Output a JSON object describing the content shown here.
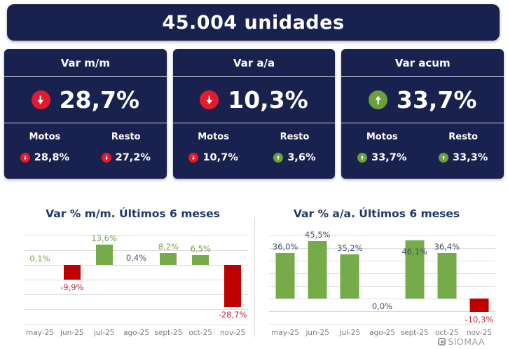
{
  "header": {
    "title": "45.004 unidades"
  },
  "cards": [
    {
      "title": "Var m/m",
      "value": "28,7%",
      "direction": "down",
      "motos": {
        "label": "Motos",
        "value": "28,8%",
        "direction": "down"
      },
      "resto": {
        "label": "Resto",
        "value": "27,2%",
        "direction": "down"
      }
    },
    {
      "title": "Var a/a",
      "value": "10,3%",
      "direction": "down",
      "motos": {
        "label": "Motos",
        "value": "10,7%",
        "direction": "down"
      },
      "resto": {
        "label": "Resto",
        "value": "3,6%",
        "direction": "up"
      }
    },
    {
      "title": "Var acum",
      "value": "33,7%",
      "direction": "up",
      "motos": {
        "label": "Motos",
        "value": "33,7%",
        "direction": "up"
      },
      "resto": {
        "label": "Resto",
        "value": "33,3%",
        "direction": "up"
      }
    }
  ],
  "colors": {
    "navy_bg": "#19214f",
    "bar_positive": "#76ab4a",
    "bar_negative": "#c00000",
    "icon_up": "#6ba03c",
    "icon_down": "#e6192e",
    "label_green": "#70a84c",
    "label_red": "#c01f34",
    "label_navy": "#44546a",
    "title_navy": "#1f3864",
    "axis_gray": "#7a7a7a",
    "gridline": "#dcdcdc"
  },
  "chart_data": [
    {
      "type": "bar",
      "title": "Var % m/m. Últimos 6 meses",
      "categories": [
        "may-25",
        "jun-25",
        "jul-25",
        "ago-25",
        "sept-25",
        "oct-25",
        "nov-25"
      ],
      "values": [
        0.1,
        -9.9,
        13.6,
        0.4,
        8.2,
        6.5,
        -28.7
      ],
      "labels": [
        "0,1%",
        "-9,9%",
        "13,6%",
        "0,4%",
        "8,2%",
        "6,5%",
        "-28,7%"
      ],
      "label_colors": [
        "green",
        "red",
        "green",
        "navy",
        "green",
        "green",
        "red"
      ],
      "label_pos": [
        "above",
        "below",
        "above",
        "above",
        "above",
        "above",
        "below"
      ],
      "xlabel": "",
      "ylabel": "",
      "ylim": [
        -40,
        20
      ],
      "grid_step": 10,
      "grid": true,
      "legend": false
    },
    {
      "type": "bar",
      "title": "Var % a/a. Últimos 6 meses",
      "categories": [
        "may-25",
        "jun-25",
        "jul-25",
        "ago-25",
        "sept-25",
        "oct-25",
        "nov-25"
      ],
      "values": [
        36.0,
        45.5,
        35.2,
        0.0,
        46.1,
        36.4,
        -10.3
      ],
      "labels": [
        "36,0%",
        "45,5%",
        "35,2%",
        "0,0%",
        "46,1%",
        "36,4%",
        "-10,3%"
      ],
      "label_colors": [
        "navy",
        "navy",
        "navy",
        "navy",
        "navy",
        "navy",
        "red"
      ],
      "label_pos": [
        "above",
        "above",
        "above",
        "below",
        "inside",
        "above",
        "below"
      ],
      "xlabel": "",
      "ylabel": "",
      "ylim": [
        -20,
        50
      ],
      "grid_step": 10,
      "grid": true,
      "legend": false
    }
  ],
  "watermark": {
    "text": "SIOMAA"
  }
}
